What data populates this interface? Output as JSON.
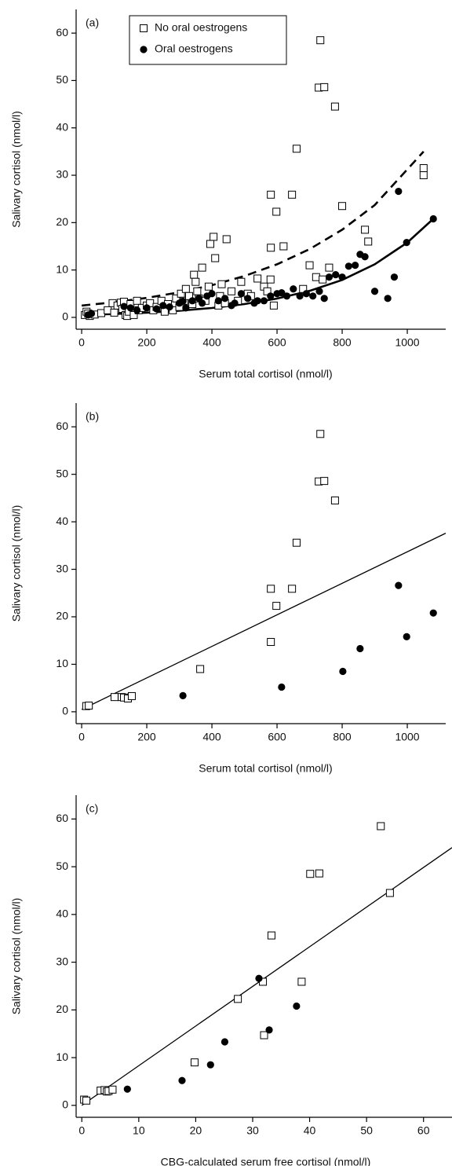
{
  "chart_data": [
    {
      "type": "scatter",
      "panel_label": "(a)",
      "x_label": "Serum total cortisol (nmol/l)",
      "y_label": "Salivary cortisol (nmol/l)",
      "xlim": [
        -17,
        1118
      ],
      "ylim": [
        -2.5,
        65
      ],
      "xticks": [
        0,
        200,
        400,
        600,
        800,
        1000
      ],
      "yticks": [
        0,
        10,
        20,
        30,
        40,
        50,
        60
      ],
      "legend": true,
      "legend_position": "top-left",
      "series": [
        {
          "name": "No oral oestrogens",
          "marker": "square",
          "color": "#000000",
          "x": [
            10,
            15,
            20,
            25,
            40,
            60,
            80,
            95,
            100,
            110,
            120,
            125,
            130,
            135,
            140,
            145,
            150,
            160,
            170,
            175,
            185,
            200,
            210,
            220,
            230,
            245,
            255,
            265,
            280,
            290,
            300,
            305,
            315,
            320,
            330,
            340,
            345,
            350,
            355,
            360,
            370,
            380,
            390,
            395,
            405,
            410,
            420,
            425,
            430,
            440,
            445,
            460,
            480,
            490,
            510,
            520,
            540,
            560,
            570,
            580,
            590,
            598,
            581,
            581,
            646,
            660,
            728,
            745,
            733,
            778,
            620,
            680,
            700,
            720,
            740,
            760,
            800,
            870,
            880,
            1050,
            1050
          ],
          "values": [
            0.5,
            1.2,
            0.8,
            0.3,
            0.6,
            0.9,
            1.5,
            3,
            1.0,
            2.5,
            3.1,
            1.8,
            3.3,
            0.5,
            0.3,
            1.2,
            2.8,
            0.5,
            3.5,
            1.5,
            2.0,
            2.5,
            3.0,
            1.5,
            2.2,
            3.5,
            1.2,
            2.8,
            1.5,
            4.0,
            2.2,
            5.0,
            3.5,
            6.0,
            4.5,
            2.8,
            9,
            7.5,
            5.5,
            4.0,
            10.5,
            3.5,
            6.5,
            15.5,
            17,
            12.5,
            2.5,
            4.5,
            7,
            3.0,
            16.5,
            5.5,
            3.5,
            7.5,
            5,
            4.5,
            8.2,
            6.5,
            5.5,
            8,
            2.5,
            22.3,
            14.7,
            25.9,
            25.9,
            35.6,
            48.5,
            48.6,
            58.5,
            44.5,
            15,
            6,
            11,
            8.5,
            8,
            10.5,
            23.5,
            18.5,
            16,
            31.5,
            30
          ]
        },
        {
          "name": "Oral oestrogens",
          "marker": "circle",
          "color": "#000000",
          "x": [
            20,
            30,
            130,
            150,
            170,
            200,
            230,
            250,
            270,
            300,
            311,
            320,
            340,
            360,
            370,
            385,
            400,
            420,
            440,
            460,
            470,
            490,
            510,
            530,
            540,
            560,
            580,
            600,
            614,
            630,
            650,
            670,
            690,
            710,
            730,
            745,
            760,
            780,
            800,
            820,
            840,
            855,
            870,
            900,
            940,
            960,
            973,
            998,
            1080
          ],
          "values": [
            0.5,
            0.8,
            2.3,
            2,
            1.5,
            2,
            1.8,
            2.5,
            2.2,
            3,
            3.4,
            2,
            3.5,
            4,
            3,
            4.5,
            5,
            3.5,
            4,
            2.5,
            3,
            5,
            4,
            3,
            3.5,
            3.5,
            4.5,
            5,
            5.2,
            4.5,
            6,
            4.5,
            5,
            4.5,
            5.5,
            4,
            8.5,
            9,
            8.5,
            10.8,
            11,
            13.3,
            12.8,
            5.5,
            4,
            8.5,
            26.6,
            15.8,
            20.8
          ]
        }
      ],
      "fits": [
        {
          "style": "dashed",
          "x": [
            0,
            100,
            200,
            300,
            400,
            500,
            600,
            700,
            800,
            900,
            1050
          ],
          "values": [
            2.5,
            3.21,
            4.12,
            5.29,
            6.79,
            8.72,
            11.2,
            14.4,
            18.5,
            23.7,
            35
          ]
        },
        {
          "style": "solid",
          "x": [
            0,
            100,
            200,
            300,
            400,
            500,
            600,
            700,
            800,
            900,
            1000,
            1080
          ],
          "values": [
            0.5,
            0.71,
            1.0,
            1.41,
            1.98,
            2.81,
            3.96,
            5.6,
            7.9,
            11.2,
            15.8,
            20.8
          ]
        }
      ]
    },
    {
      "type": "scatter",
      "panel_label": "(b)",
      "x_label": "Serum total cortisol (nmol/l)",
      "y_label": "Salivary cortisol (nmol/l)",
      "xlim": [
        -17,
        1118
      ],
      "ylim": [
        -2.5,
        65
      ],
      "xticks": [
        0,
        200,
        400,
        600,
        800,
        1000
      ],
      "yticks": [
        0,
        10,
        20,
        30,
        40,
        50,
        60
      ],
      "legend": false,
      "series": [
        {
          "marker": "square",
          "color": "#000000",
          "x": [
            14,
            22,
            101,
            123,
            130,
            142,
            154,
            364,
            598,
            581,
            581,
            646,
            660,
            728,
            745,
            733,
            778
          ],
          "values": [
            1.2,
            1.3,
            3.1,
            3.1,
            3.0,
            2.8,
            3.3,
            9,
            22.3,
            14.7,
            25.9,
            25.9,
            35.6,
            48.5,
            48.6,
            58.5,
            44.5
          ]
        },
        {
          "marker": "circle",
          "color": "#000000",
          "x": [
            311,
            614,
            802,
            855,
            973,
            998,
            1080
          ],
          "values": [
            3.4,
            5.2,
            8.5,
            13.3,
            26.6,
            15.8,
            20.8
          ]
        }
      ],
      "fits": [
        {
          "style": "solid",
          "x": [
            0,
            1118
          ],
          "values": [
            0.5,
            37.6
          ]
        }
      ]
    },
    {
      "type": "scatter",
      "panel_label": "(c)",
      "x_label": "CBG-calculated serum free cortisol (nmol/l)",
      "y_label": "Salivary cortisol (nmol/l)",
      "xlim": [
        -1,
        65
      ],
      "ylim": [
        -2.5,
        65
      ],
      "xticks": [
        0,
        10,
        20,
        30,
        40,
        50,
        60
      ],
      "yticks": [
        0,
        10,
        20,
        30,
        40,
        50,
        60
      ],
      "legend": false,
      "series": [
        {
          "marker": "square",
          "color": "#000000",
          "x": [
            0.4,
            0.8,
            3.3,
            4.0,
            4.4,
            4.7,
            5.4,
            19.8,
            27.4,
            32.0,
            31.8,
            38.6,
            33.3,
            40.1,
            41.7,
            52.5,
            54.1
          ],
          "values": [
            1.2,
            1.0,
            3.1,
            3.2,
            2.9,
            3.0,
            3.3,
            9,
            22.3,
            14.7,
            25.9,
            25.9,
            35.6,
            48.5,
            48.6,
            58.5,
            44.5
          ]
        },
        {
          "marker": "circle",
          "color": "#000000",
          "x": [
            8.0,
            17.6,
            22.6,
            25.1,
            31.1,
            32.9,
            37.7
          ],
          "values": [
            3.4,
            5.2,
            8.5,
            13.3,
            26.6,
            15.8,
            20.8
          ]
        }
      ],
      "fits": [
        {
          "style": "solid",
          "x": [
            0,
            65
          ],
          "values": [
            0,
            54
          ]
        }
      ]
    }
  ]
}
